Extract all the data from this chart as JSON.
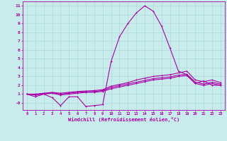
{
  "title": "",
  "xlabel": "Windchill (Refroidissement éolien,°C)",
  "background_color": "#c8ecec",
  "grid_color": "#b0d8d8",
  "line_color": "#aa00aa",
  "x_values": [
    0,
    1,
    2,
    3,
    4,
    5,
    6,
    7,
    8,
    9,
    10,
    11,
    12,
    13,
    14,
    15,
    16,
    17,
    18,
    19,
    20,
    21,
    22,
    23
  ],
  "series": [
    [
      1,
      0.7,
      1.0,
      0.6,
      -0.3,
      0.7,
      0.7,
      -0.4,
      -0.3,
      -0.2,
      4.7,
      7.5,
      9.0,
      10.2,
      11.0,
      10.4,
      8.7,
      6.2,
      3.6,
      3.2,
      2.2,
      2.5,
      2.0,
      2.0
    ],
    [
      1,
      0.9,
      1.0,
      1.1,
      0.9,
      1.0,
      1.1,
      1.2,
      1.2,
      1.3,
      1.6,
      1.8,
      2.0,
      2.2,
      2.4,
      2.6,
      2.7,
      2.8,
      3.0,
      3.1,
      2.2,
      2.0,
      2.2,
      2.0
    ],
    [
      1,
      0.95,
      1.05,
      1.15,
      1.0,
      1.1,
      1.2,
      1.25,
      1.3,
      1.4,
      1.75,
      1.95,
      2.15,
      2.35,
      2.55,
      2.75,
      2.85,
      2.95,
      3.15,
      3.25,
      2.35,
      2.15,
      2.35,
      2.15
    ],
    [
      1,
      1.0,
      1.1,
      1.2,
      1.1,
      1.2,
      1.3,
      1.35,
      1.4,
      1.5,
      1.9,
      2.1,
      2.3,
      2.6,
      2.8,
      3.0,
      3.1,
      3.2,
      3.4,
      3.6,
      2.6,
      2.4,
      2.6,
      2.3
    ]
  ],
  "ylim": [
    -0.8,
    11.5
  ],
  "ytick_vals": [
    0,
    1,
    2,
    3,
    4,
    5,
    6,
    7,
    8,
    9,
    10,
    11
  ],
  "ytick_labels": [
    "-0",
    "1",
    "2",
    "3",
    "4",
    "5",
    "6",
    "7",
    "8",
    "9",
    "10",
    "11"
  ]
}
